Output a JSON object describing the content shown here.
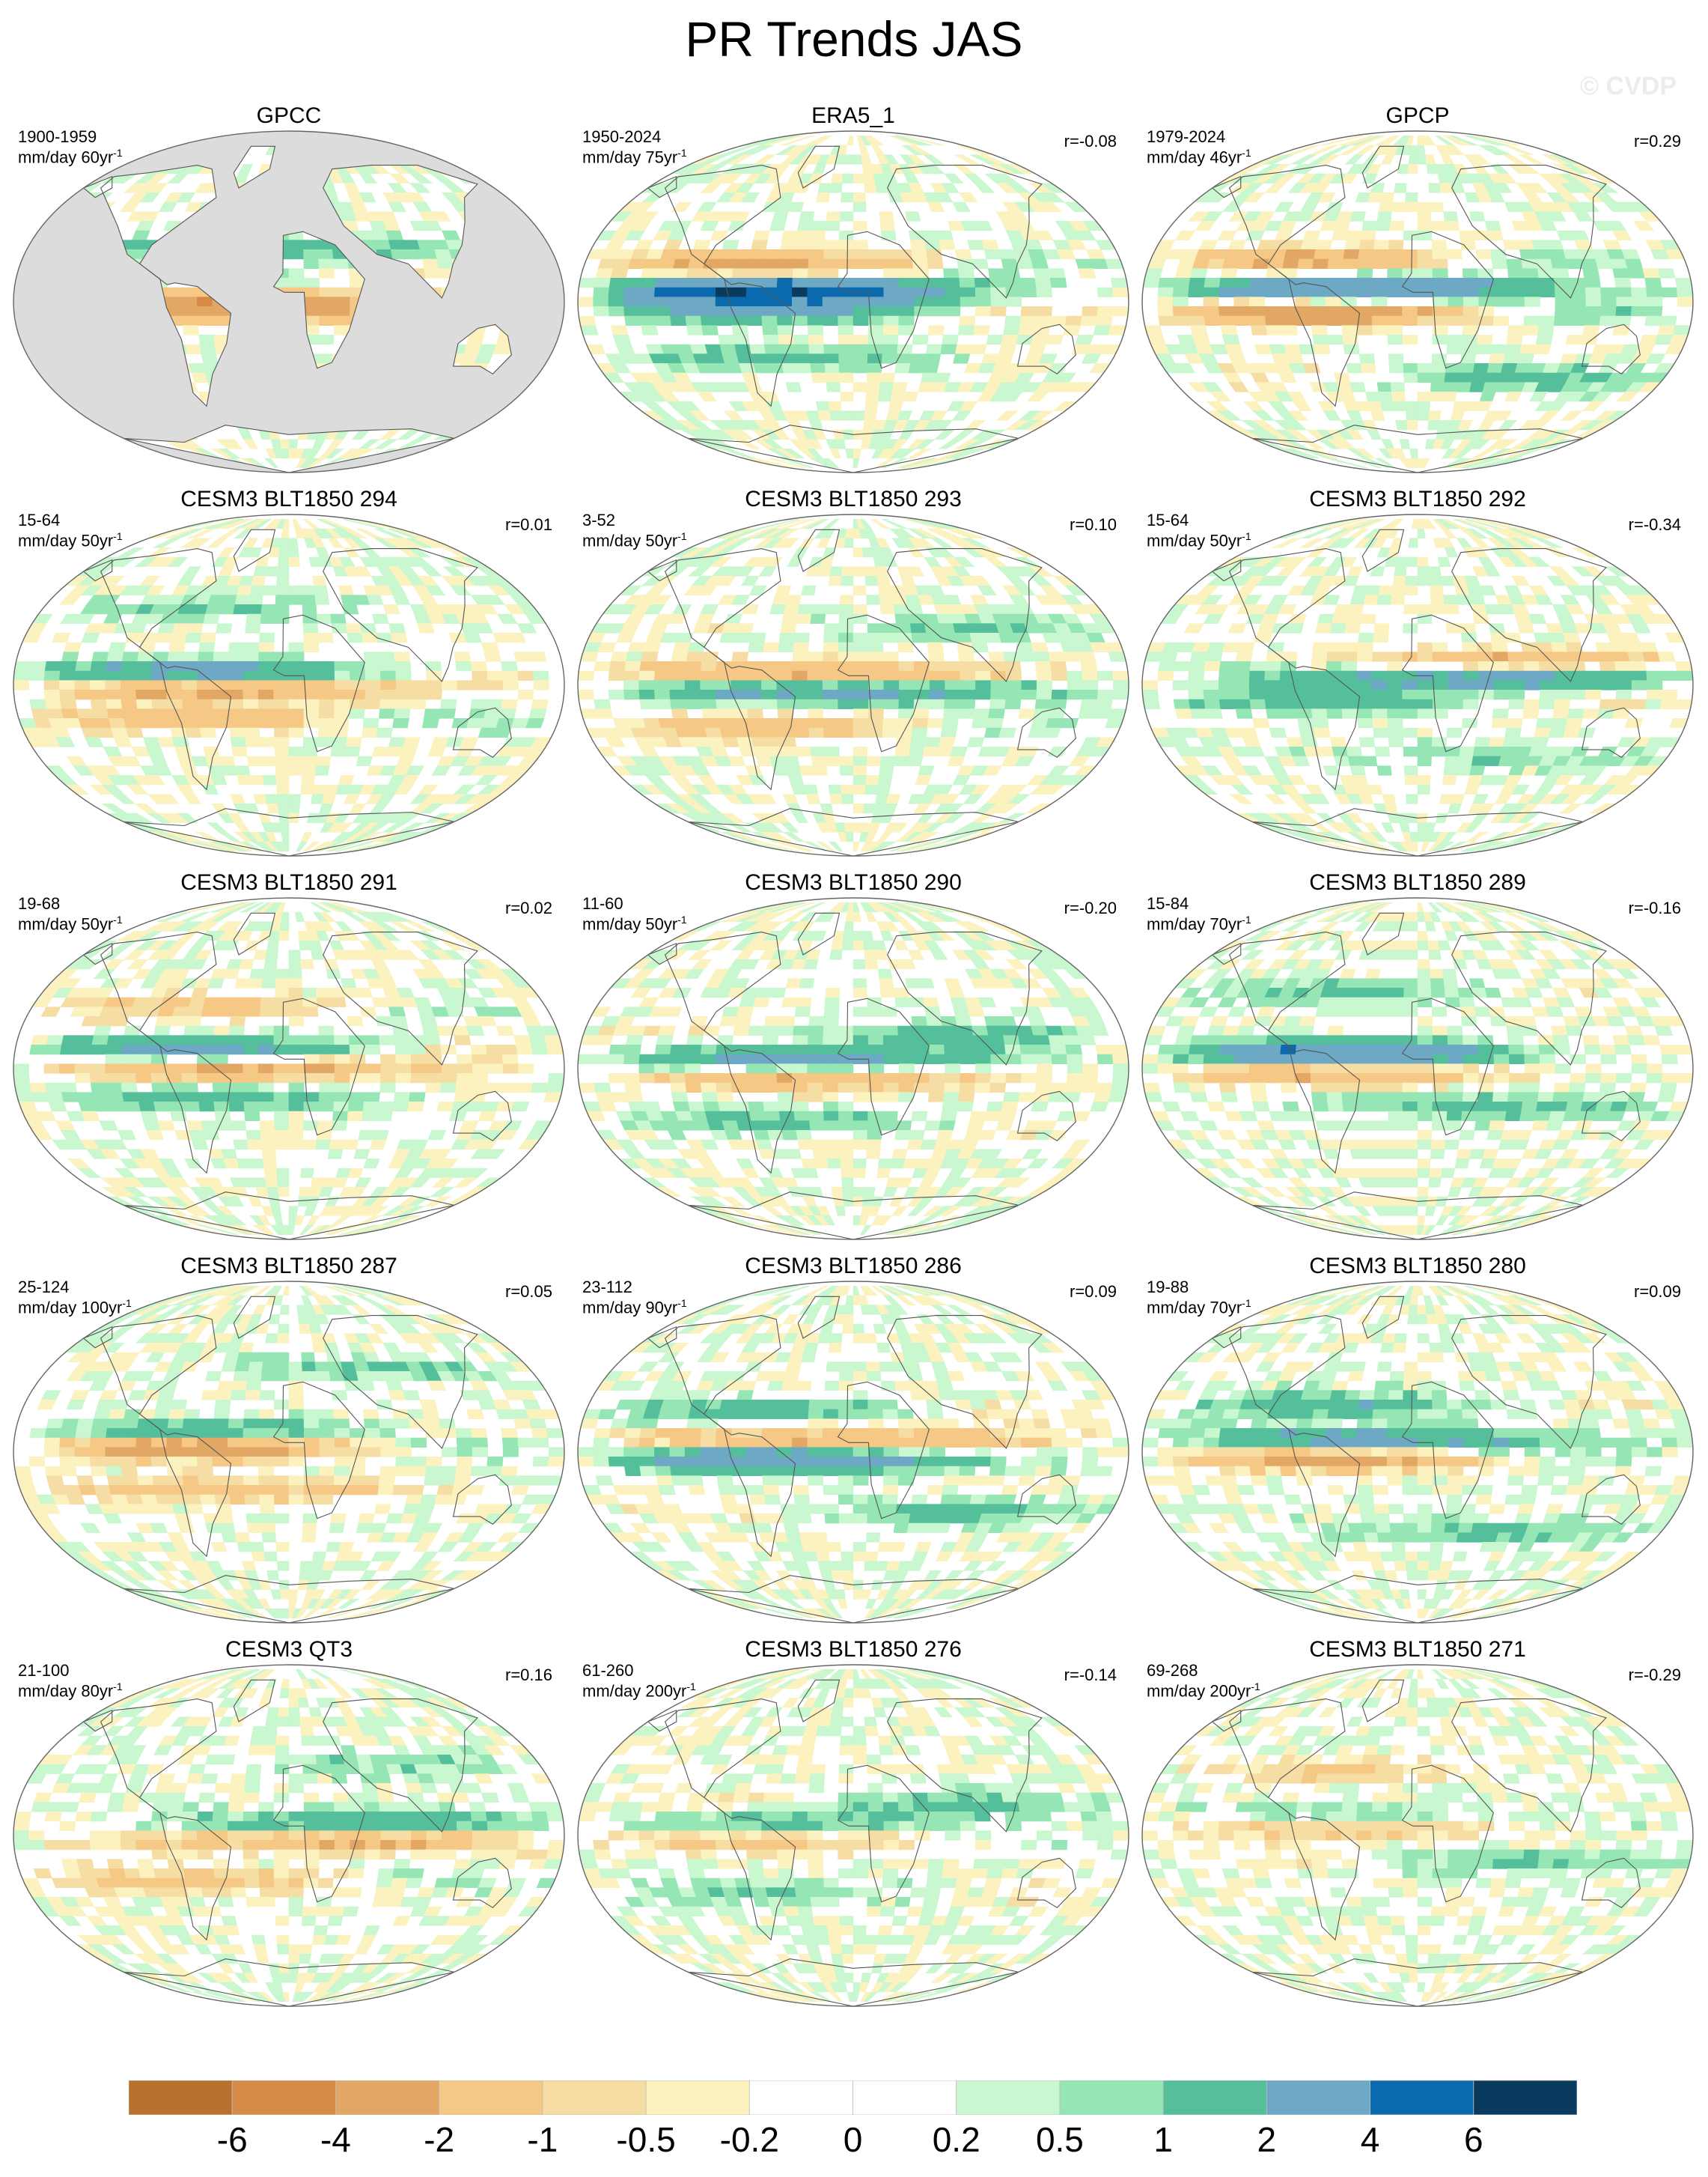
{
  "title": "PR Trends JAS",
  "watermark": "© CVDP",
  "chart_data": {
    "type": "map-grid",
    "title": "PR Trends JAS",
    "projection": "robinson",
    "panels": [
      {
        "title": "GPCC",
        "period": "1900-1959",
        "units": "mm/day 60yr",
        "corr": "",
        "land_only": true,
        "bands": [
          [
            -6,
            -1.6,
            0.4
          ],
          [
            0,
            -2.4,
            1.2
          ],
          [
            13,
            0.3,
            -0.5
          ],
          [
            28,
            1.4,
            -0.2
          ]
        ]
      },
      {
        "title": "ERA5_1",
        "period": "1950-2024",
        "units": "mm/day 75yr",
        "corr": "r=-0.08",
        "land_only": false,
        "bands": [
          [
            6,
            4.5,
            -2.2
          ],
          [
            -4,
            1.8,
            -1.6
          ],
          [
            20,
            -1.6,
            1.4
          ],
          [
            -30,
            0.9,
            -0.6
          ]
        ]
      },
      {
        "title": "GPCP",
        "period": "1979-2024",
        "units": "mm/day 46yr",
        "corr": "r=0.29",
        "land_only": false,
        "bands": [
          [
            7,
            3.2,
            -1.2
          ],
          [
            -6,
            -1.8,
            1.8
          ],
          [
            22,
            -1.2,
            1.6
          ],
          [
            -40,
            0.8,
            0.9
          ]
        ]
      },
      {
        "title": "CESM3 BLT1850 294",
        "period": "15-64",
        "units": "mm/day 50yr",
        "corr": "r=0.01",
        "land_only": false,
        "bands": [
          [
            7,
            2.2,
            -1.4
          ],
          [
            -2,
            -2.2,
            0.8
          ],
          [
            -18,
            -0.9,
            1.2
          ],
          [
            40,
            0.6,
            -0.4
          ]
        ]
      },
      {
        "title": "CESM3 BLT1850 293",
        "period": "3-52",
        "units": "mm/day 50yr",
        "corr": "r=0.10",
        "land_only": false,
        "bands": [
          [
            -3,
            2.6,
            -0.4
          ],
          [
            6,
            -2.2,
            0.6
          ],
          [
            -22,
            -0.9,
            1.0
          ],
          [
            30,
            0.6,
            0.6
          ]
        ]
      },
      {
        "title": "CESM3 BLT1850 292",
        "period": "15-64",
        "units": "mm/day 50yr",
        "corr": "r=-0.34",
        "land_only": false,
        "bands": [
          [
            4,
            2.6,
            0.6
          ],
          [
            13,
            -1.6,
            -0.8
          ],
          [
            -8,
            1.1,
            -1.0
          ],
          [
            -38,
            0.6,
            0.3
          ]
        ]
      },
      {
        "title": "CESM3 BLT1850 291",
        "period": "19-68",
        "units": "mm/day 50yr",
        "corr": "r=0.02",
        "land_only": false,
        "bands": [
          [
            10,
            1.9,
            -1.4
          ],
          [
            0,
            -2.2,
            0.6
          ],
          [
            -16,
            1.1,
            -0.7
          ],
          [
            32,
            -0.8,
            0.8
          ]
        ]
      },
      {
        "title": "CESM3 BLT1850 290",
        "period": "11-60",
        "units": "mm/day 50yr",
        "corr": "r=-0.20",
        "land_only": false,
        "bands": [
          [
            5,
            2.4,
            -0.7
          ],
          [
            -5,
            -1.8,
            0.4
          ],
          [
            18,
            0.9,
            0.9
          ],
          [
            -28,
            0.8,
            -0.7
          ]
        ]
      },
      {
        "title": "CESM3 BLT1850 289",
        "period": "15-84",
        "units": "mm/day 70yr",
        "corr": "r=-0.16",
        "land_only": false,
        "bands": [
          [
            8,
            3.2,
            -1.8
          ],
          [
            -2,
            -1.6,
            1.0
          ],
          [
            -20,
            1.1,
            0.5
          ],
          [
            40,
            0.8,
            -0.6
          ]
        ]
      },
      {
        "title": "CESM3 BLT1850 287",
        "period": "25-124",
        "units": "mm/day 100yr",
        "corr": "r=0.05",
        "land_only": false,
        "bands": [
          [
            3,
            -2.4,
            2.0
          ],
          [
            10,
            1.6,
            -1.2
          ],
          [
            -20,
            -1.1,
            0.5
          ],
          [
            44,
            0.8,
            0.5
          ]
        ]
      },
      {
        "title": "CESM3 BLT1850 286",
        "period": "23-112",
        "units": "mm/day 90yr",
        "corr": "r=0.09",
        "land_only": false,
        "bands": [
          [
            -4,
            3.2,
            -1.4
          ],
          [
            6,
            -2.2,
            0.2
          ],
          [
            22,
            0.9,
            -0.9
          ],
          [
            -32,
            0.8,
            0.8
          ]
        ]
      },
      {
        "title": "CESM3 BLT1850 280",
        "period": "19-88",
        "units": "mm/day 70yr",
        "corr": "r=0.09",
        "land_only": false,
        "bands": [
          [
            6,
            2.6,
            -0.7
          ],
          [
            -3,
            -1.8,
            1.4
          ],
          [
            25,
            1.1,
            -0.9
          ],
          [
            -42,
            1.0,
            0.4
          ]
        ]
      },
      {
        "title": "CESM3 QT3",
        "period": "21-100",
        "units": "mm/day 80yr",
        "corr": "r=0.16",
        "land_only": false,
        "bands": [
          [
            6,
            1.9,
            0.7
          ],
          [
            -2,
            -2.2,
            -0.5
          ],
          [
            -24,
            -0.8,
            0.9
          ],
          [
            38,
            0.6,
            0.5
          ]
        ]
      },
      {
        "title": "CESM3 BLT1850 276",
        "period": "61-260",
        "units": "mm/day 200yr",
        "corr": "r=-0.14",
        "land_only": false,
        "bands": [
          [
            7,
            1.1,
            -0.6
          ],
          [
            -3,
            -0.8,
            0.7
          ],
          [
            16,
            0.6,
            0.8
          ],
          [
            -30,
            0.5,
            -0.5
          ]
        ]
      },
      {
        "title": "CESM3 BLT1850 271",
        "period": "69-268",
        "units": "mm/day 200yr",
        "corr": "r=-0.29",
        "land_only": false,
        "bands": [
          [
            4,
            -1.1,
            0.8
          ],
          [
            10,
            0.9,
            -0.5
          ],
          [
            -14,
            0.6,
            0.6
          ],
          [
            34,
            -0.6,
            0.4
          ]
        ]
      }
    ],
    "colorbar": {
      "levels": [
        "-6",
        "-4",
        "-2",
        "-1",
        "-0.5",
        "-0.2",
        "0",
        "0.2",
        "0.5",
        "1",
        "2",
        "4",
        "6"
      ],
      "colors": [
        "#b8702e",
        "#d58a45",
        "#e3a765",
        "#f6c885",
        "#f6dda3",
        "#fcf2c0",
        "#ffffff",
        "#ffffff",
        "#c9f7cf",
        "#95e6b4",
        "#55bf9c",
        "#6da8c4",
        "#0a6aad",
        "#0a3a5e"
      ]
    }
  }
}
